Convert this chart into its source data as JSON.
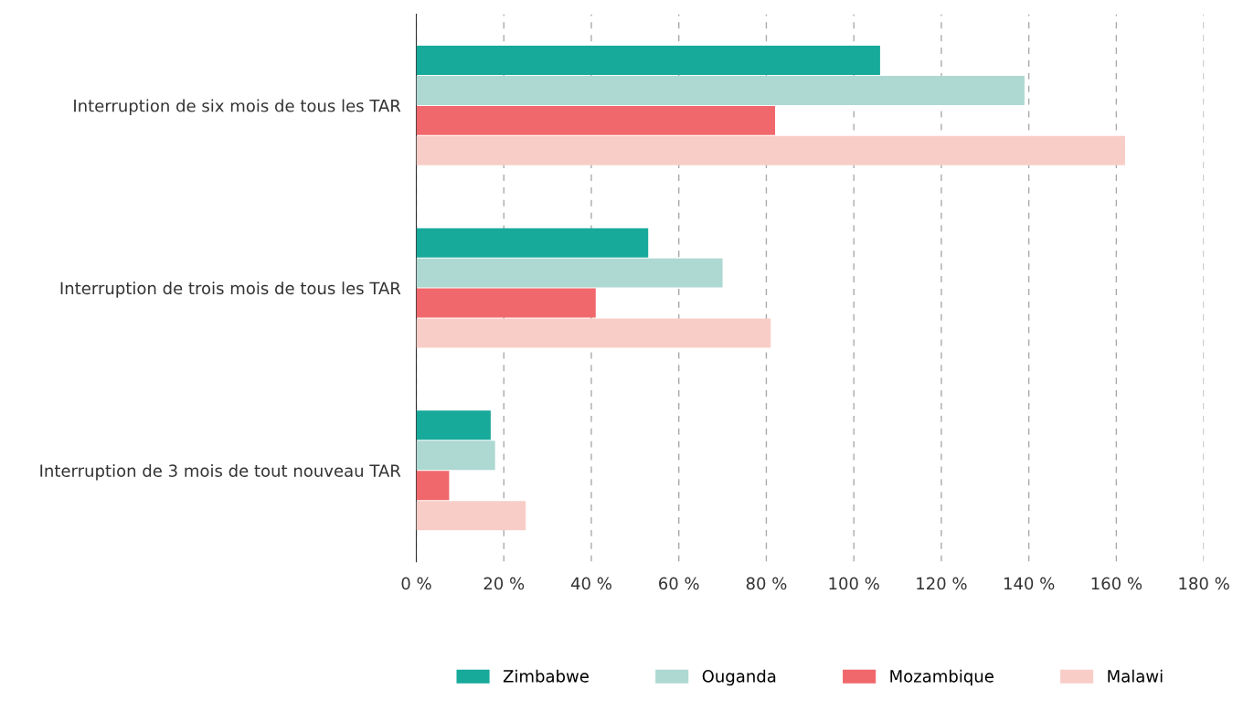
{
  "chart_data": {
    "type": "bar",
    "orientation": "horizontal",
    "categories": [
      "Interruption de six mois de tous les TAR",
      "Interruption de trois mois de tous les TAR",
      "Interruption de 3 mois de tout nouveau TAR"
    ],
    "series": [
      {
        "name": "Zimbabwe",
        "color": "#17a99a",
        "values": [
          106,
          53,
          17
        ]
      },
      {
        "name": "Ouganda",
        "color": "#aed8d2",
        "values": [
          139,
          70,
          18
        ]
      },
      {
        "name": "Mozambique",
        "color": "#f0686b",
        "values": [
          82,
          41,
          7.5
        ]
      },
      {
        "name": "Malawi",
        "color": "#f9cdc7",
        "values": [
          162,
          81,
          25
        ]
      }
    ],
    "xlim": [
      0,
      180
    ],
    "xticks": [
      {
        "value": 0,
        "label": "0 %"
      },
      {
        "value": 20,
        "label": "20 %"
      },
      {
        "value": 40,
        "label": "40 %"
      },
      {
        "value": 60,
        "label": "60 %"
      },
      {
        "value": 80,
        "label": "80 %"
      },
      {
        "value": 100,
        "label": "100 %"
      },
      {
        "value": 120,
        "label": "120 %"
      },
      {
        "value": 140,
        "label": "140 %"
      },
      {
        "value": 160,
        "label": "160 %"
      },
      {
        "value": 180,
        "label": "180 %"
      }
    ],
    "grid": "x",
    "legend": "bottom"
  }
}
